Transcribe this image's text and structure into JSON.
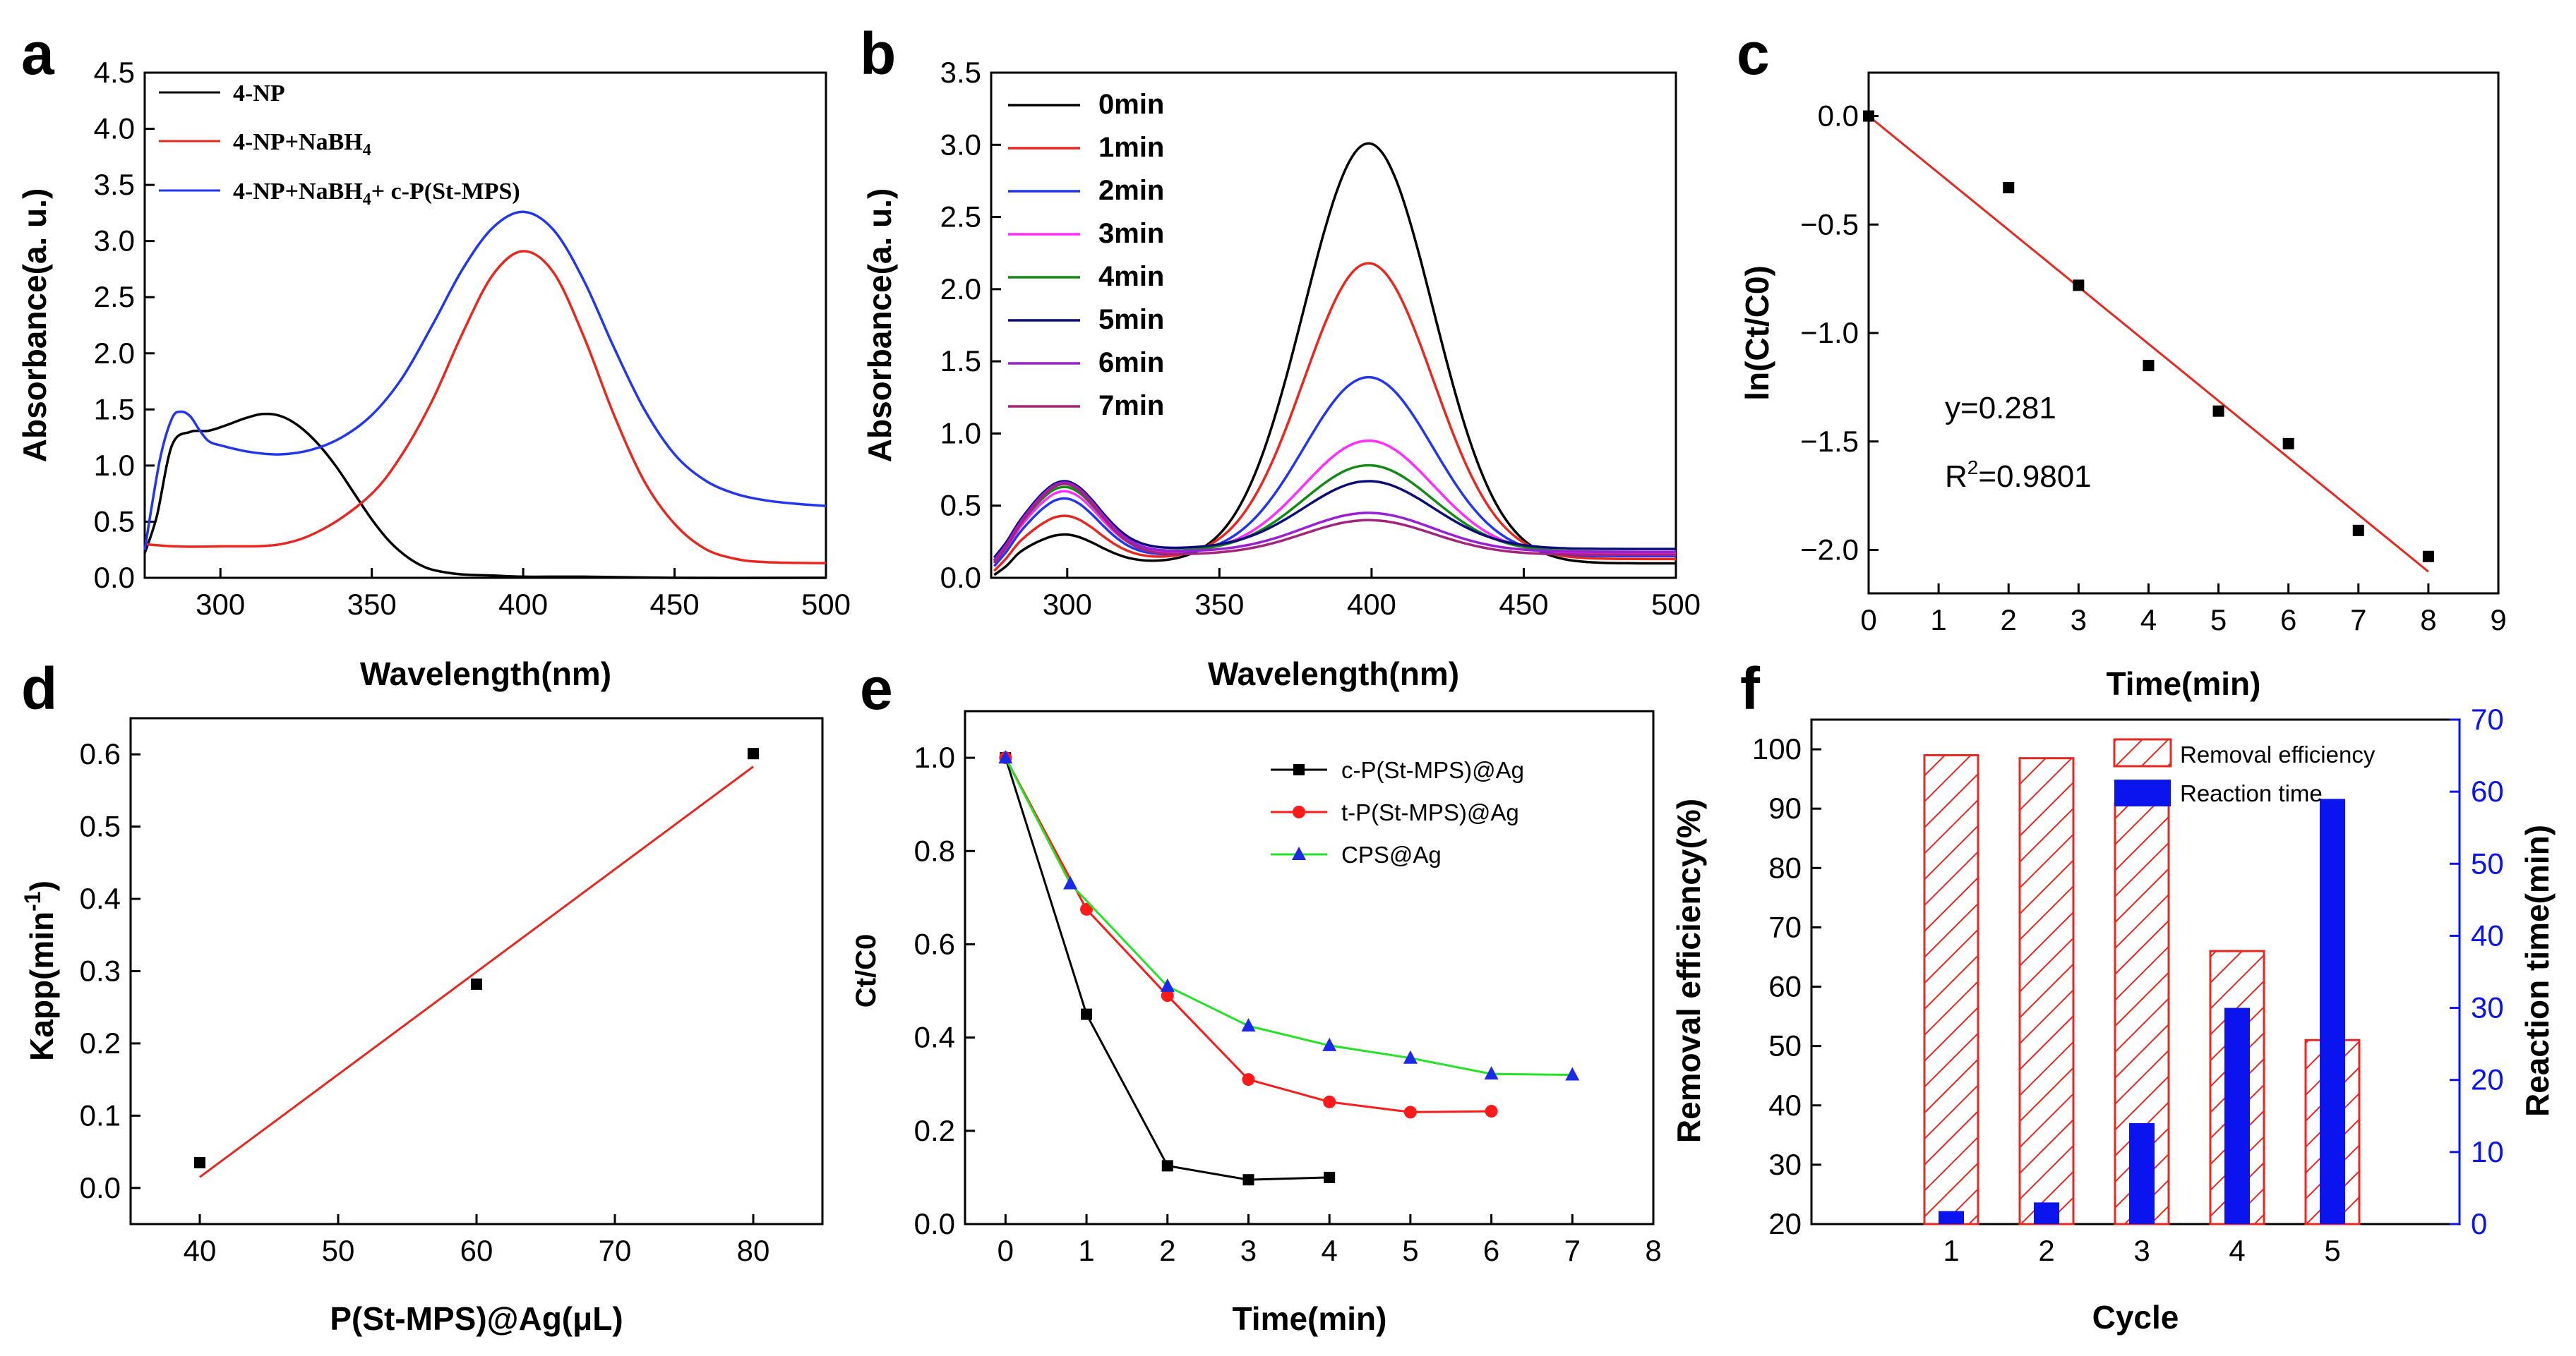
{
  "figure": {
    "panel_letters": [
      "a",
      "b",
      "c",
      "d",
      "e",
      "f"
    ]
  },
  "chart_data": [
    {
      "panel": "a",
      "type": "line",
      "xlabel": "Wavelength(nm)",
      "ylabel": "Absorbance(a. u.)",
      "xlim": [
        275,
        500
      ],
      "ylim": [
        0,
        4.5
      ],
      "xticks": [
        300,
        350,
        400,
        450,
        500
      ],
      "yticks": [
        0.0,
        0.5,
        1.0,
        1.5,
        2.0,
        2.5,
        3.0,
        3.5,
        4.0,
        4.5
      ],
      "series": [
        {
          "name": "4-NP",
          "color": "#000000",
          "x": [
            275,
            279,
            284,
            290,
            296,
            302,
            308,
            314,
            320,
            326,
            332,
            338,
            344,
            350,
            356,
            362,
            368,
            374,
            380,
            390,
            400,
            420,
            450,
            500
          ],
          "y": [
            0.22,
            0.55,
            1.18,
            1.3,
            1.31,
            1.36,
            1.42,
            1.46,
            1.44,
            1.35,
            1.2,
            1.0,
            0.76,
            0.52,
            0.32,
            0.18,
            0.09,
            0.05,
            0.03,
            0.02,
            0.01,
            0.01,
            0.0,
            0.0
          ]
        },
        {
          "name": "4-NP+NaBH4",
          "color": "#e8271f",
          "x": [
            275,
            285,
            300,
            320,
            335,
            350,
            360,
            370,
            380,
            390,
            400,
            410,
            420,
            430,
            440,
            450,
            460,
            470,
            480,
            500
          ],
          "y": [
            0.3,
            0.28,
            0.28,
            0.3,
            0.45,
            0.75,
            1.1,
            1.58,
            2.18,
            2.7,
            2.91,
            2.72,
            2.15,
            1.45,
            0.86,
            0.48,
            0.26,
            0.17,
            0.14,
            0.13
          ]
        },
        {
          "name": "4-NP+NaBH4+ c-P(St-MPS)",
          "color": "#2136ee",
          "x": [
            275,
            280,
            284,
            287,
            290,
            293,
            296,
            300,
            310,
            320,
            330,
            340,
            350,
            360,
            370,
            380,
            390,
            400,
            410,
            420,
            430,
            440,
            450,
            460,
            470,
            480,
            490,
            500
          ],
          "y": [
            0.25,
            1.05,
            1.42,
            1.48,
            1.44,
            1.32,
            1.22,
            1.18,
            1.12,
            1.1,
            1.14,
            1.25,
            1.45,
            1.78,
            2.25,
            2.75,
            3.12,
            3.26,
            3.1,
            2.65,
            2.05,
            1.5,
            1.1,
            0.87,
            0.75,
            0.69,
            0.66,
            0.64
          ]
        }
      ]
    },
    {
      "panel": "b",
      "type": "line",
      "xlabel": "Wavelength(nm)",
      "ylabel": "Absorbance(a. u.)",
      "xlim": [
        275,
        500
      ],
      "ylim": [
        0,
        3.5
      ],
      "xticks": [
        300,
        350,
        400,
        450,
        500
      ],
      "yticks": [
        0.0,
        0.5,
        1.0,
        1.5,
        2.0,
        2.5,
        3.0,
        3.5
      ],
      "series": [
        {
          "name": "0min",
          "color": "#000000",
          "peak": 3.01,
          "uv": 0.2,
          "tail": 0.1
        },
        {
          "name": "1min",
          "color": "#e8271f",
          "peak": 2.18,
          "uv": 0.3,
          "tail": 0.13
        },
        {
          "name": "2min",
          "color": "#2136ee",
          "peak": 1.39,
          "uv": 0.4,
          "tail": 0.15
        },
        {
          "name": "3min",
          "color": "#ff2bff",
          "peak": 0.95,
          "uv": 0.43,
          "tail": 0.17
        },
        {
          "name": "4min",
          "color": "#138a13",
          "peak": 0.78,
          "uv": 0.45,
          "tail": 0.18
        },
        {
          "name": "5min",
          "color": "#0b0b7a",
          "peak": 0.67,
          "uv": 0.47,
          "tail": 0.2
        },
        {
          "name": "6min",
          "color": "#9b1dd8",
          "peak": 0.45,
          "uv": 0.48,
          "tail": 0.18
        },
        {
          "name": "7min",
          "color": "#a3237f",
          "peak": 0.4,
          "uv": 0.49,
          "tail": 0.16
        }
      ]
    },
    {
      "panel": "c",
      "type": "scatter",
      "xlabel": "Time(min)",
      "ylabel": "ln(Ct/C0)",
      "xlim": [
        0,
        9
      ],
      "ylim": [
        -2.2,
        0.2
      ],
      "xticks": [
        0,
        1,
        2,
        3,
        4,
        5,
        6,
        7,
        8,
        9
      ],
      "yticks": [
        0.0,
        -0.5,
        -1.0,
        -1.5,
        -2.0
      ],
      "ytick_labels": [
        "0.0",
        "−0.5",
        "−1.0",
        "−1.5",
        "−2.0"
      ],
      "points": {
        "x": [
          0,
          2,
          3,
          4,
          5,
          6,
          7,
          8
        ],
        "y": [
          0.0,
          -0.33,
          -0.78,
          -1.15,
          -1.36,
          -1.51,
          -1.91,
          -2.03
        ]
      },
      "fit": {
        "x": [
          0,
          8
        ],
        "y": [
          0.0,
          -2.1
        ],
        "color": "#e8271f"
      },
      "annotations": {
        "equation": "y=0.281",
        "r2_prefix": "R",
        "r2_sup": "2",
        "r2_value": "=0.9801"
      }
    },
    {
      "panel": "d",
      "type": "scatter",
      "xlabel": "P(St-MPS)@Ag(μL)",
      "ylabel": {
        "main": "Kapp(min",
        "sup": "-1",
        "close": ")"
      },
      "xlim": [
        35,
        85
      ],
      "ylim": [
        -0.05,
        0.65
      ],
      "xticks": [
        40,
        50,
        60,
        70,
        80
      ],
      "yticks": [
        0.0,
        0.1,
        0.2,
        0.3,
        0.4,
        0.5,
        0.6
      ],
      "points": {
        "x": [
          40,
          60,
          80
        ],
        "y": [
          0.035,
          0.282,
          0.601
        ]
      },
      "fit": {
        "x": [
          40,
          80
        ],
        "y": [
          0.015,
          0.583
        ],
        "color": "#e8271f"
      }
    },
    {
      "panel": "e",
      "type": "line",
      "xlabel": "Time(min)",
      "ylabel": "Ct/C0",
      "xlim": [
        -0.5,
        8
      ],
      "ylim": [
        0,
        1.1
      ],
      "xticks": [
        0,
        1,
        2,
        3,
        4,
        5,
        6,
        7,
        8
      ],
      "yticks": [
        0.0,
        0.2,
        0.4,
        0.6,
        0.8,
        1.0
      ],
      "series": [
        {
          "name": "c-P(St-MPS)@Ag",
          "color": "#000000",
          "marker": "square",
          "x": [
            0,
            1,
            2,
            3,
            4
          ],
          "y": [
            1.0,
            0.45,
            0.125,
            0.095,
            0.1
          ]
        },
        {
          "name": "t-P(St-MPS)@Ag",
          "color": "#ff1a1a",
          "marker": "circle",
          "x": [
            0,
            1,
            2,
            3,
            4,
            5,
            6
          ],
          "y": [
            1.0,
            0.675,
            0.49,
            0.31,
            0.262,
            0.24,
            0.242
          ]
        },
        {
          "name": "CPS@Ag",
          "color": "#22e522",
          "marker_color": "#1a2ae8",
          "marker": "triangle",
          "x": [
            0,
            0.8,
            2,
            3,
            4,
            5,
            6,
            7
          ],
          "y": [
            1.0,
            0.73,
            0.51,
            0.425,
            0.383,
            0.356,
            0.322,
            0.32
          ]
        }
      ]
    },
    {
      "panel": "f",
      "type": "bar",
      "xlabel": "Cycle",
      "ylabel": "Removal efficiency(%)",
      "ylabel_right": "Reaction time(min)",
      "categories": [
        "1",
        "2",
        "3",
        "4",
        "5"
      ],
      "ylim": [
        20,
        105
      ],
      "yticks": [
        20,
        30,
        40,
        50,
        60,
        70,
        80,
        90,
        100
      ],
      "ylim_right": [
        0,
        70
      ],
      "yticks_right": [
        0,
        10,
        20,
        30,
        40,
        50,
        60,
        70
      ],
      "series": [
        {
          "name": "Removal efficiency",
          "axis": "left",
          "color": "#e8271f",
          "pattern": "hatch",
          "values": [
            99,
            98.5,
            90.8,
            66,
            51
          ]
        },
        {
          "name": "Reaction time",
          "axis": "right",
          "color": "#0a14ee",
          "values": [
            1.8,
            3.0,
            14.0,
            30.0,
            59.0
          ]
        }
      ]
    }
  ]
}
